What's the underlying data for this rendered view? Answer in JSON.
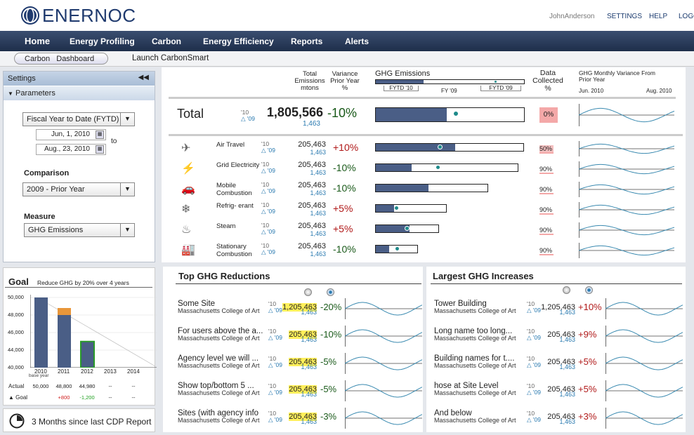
{
  "header": {
    "logo_text": "ENERNOC",
    "user": "JohnAnderson",
    "settings_link": "SETTINGS",
    "help_link": "HELP",
    "logout_link": "LOGO"
  },
  "nav": {
    "items": [
      "Home",
      "Energy Profiling",
      "Carbon",
      "Energy Efficiency",
      "Reports",
      "Alerts"
    ]
  },
  "subnav": {
    "crumb_1": "Carbon",
    "crumb_2": "Dashboard",
    "launch": "Launch CarbonSmart"
  },
  "settings": {
    "title": "Settings",
    "collapse_icon": "double-chevron-left-icon",
    "params_title": "Parameters",
    "period": "Fiscal Year to Date (FYTD)",
    "date_from": "Jun, 1, 2010",
    "date_to": "Aug., 23, 2010",
    "to_label": "to",
    "comparison_label": "Comparison",
    "comparison_value": "2009 - Prior Year",
    "measure_label": "Measure",
    "measure_value": "GHG Emissions"
  },
  "goal": {
    "title": "Goal",
    "subtitle": "Reduce GHG by 20% over 4 years",
    "y_ticks": [
      "50,000",
      "48,000",
      "46,000",
      "44,000",
      "40,000"
    ],
    "x_labels": [
      "2010",
      "2011",
      "2012",
      "2013",
      "2014"
    ],
    "base_year_label": "base year",
    "actual_label": "Actual",
    "goal_label": "Goal",
    "actual_values": [
      "50,000",
      "48,800",
      "44,980",
      "--",
      "--"
    ],
    "goal_values": [
      "",
      "+800",
      "-1,200",
      "--",
      "--"
    ],
    "colors": {
      "bar": "#4a5e86",
      "over": "#e8963a",
      "under": "#2a9a2a"
    }
  },
  "cdp": {
    "text": "3 Months since last CDP Report",
    "icon": "clock-icon"
  },
  "table": {
    "col_total": "Total Emissions mtons",
    "col_variance": "Variance Prior Year %",
    "col_ghg": "GHG Emissions",
    "fytd10": "FYTD '10",
    "fy09": "FY '09",
    "fytd09": "FYTD '09",
    "col_collected": "Data Collected %",
    "col_monthly": "GHG Monthly Variance From Prior Year",
    "month_start": "Jun. 2010",
    "month_end": "Aug. 2010",
    "total": {
      "label": "Total",
      "y10": "'10",
      "y09": "'09",
      "value": "1,805,566",
      "prior": "1,463",
      "variance": "-10%",
      "fill": 0.48,
      "dot": 0.52,
      "collected": "0%"
    },
    "rows": [
      {
        "icon": "airplane-icon",
        "name": "Air Travel",
        "y10": "'10",
        "y09": "'09",
        "value": "205,463",
        "prior": "1,463",
        "variance": "+10%",
        "fill": 0.54,
        "dot": 0.42,
        "bar_len": 1.0,
        "collected": "50%"
      },
      {
        "icon": "lightning-icon",
        "name": "Grid Electricity",
        "y10": "'10",
        "y09": "'09",
        "value": "205,463",
        "prior": "1,463",
        "variance": "-10%",
        "fill": 0.25,
        "dot": 0.42,
        "bar_len": 0.96,
        "collected": "90%"
      },
      {
        "icon": "car-icon",
        "name": "Mobile Combustion",
        "y10": "'10",
        "y09": "'09",
        "value": "205,463",
        "prior": "1,463",
        "variance": "-10%",
        "fill": 0.47,
        "dot": -1,
        "bar_len": 0.76,
        "collected": "90%"
      },
      {
        "icon": "snowflake-icon",
        "name": "Refrig- erant",
        "y10": "'10",
        "y09": "'09",
        "value": "205,463",
        "prior": "1,463",
        "variance": "+5%",
        "fill": 0.26,
        "dot": 0.26,
        "bar_len": 0.48,
        "collected": "90%"
      },
      {
        "icon": "steam-icon",
        "name": "Steam",
        "y10": "'10",
        "y09": "'09",
        "value": "205,463",
        "prior": "1,463",
        "variance": "+5%",
        "fill": 0.54,
        "dot": 0.46,
        "bar_len": 0.43,
        "collected": "90%"
      },
      {
        "icon": "factory-icon",
        "name": "Stationary Combustion",
        "y10": "'10",
        "y09": "'09",
        "value": "205,463",
        "prior": "1,463",
        "variance": "-10%",
        "fill": 0.33,
        "dot": 0.45,
        "bar_len": 0.29,
        "collected": "90%"
      }
    ]
  },
  "reductions": {
    "title": "Top GHG Reductions",
    "items": [
      {
        "name": "Some Site",
        "sub": "Massachusetts College of Art",
        "y10": "'10",
        "y09": "'09",
        "value": "1,205,463",
        "prior": "1,463",
        "variance": "-20%"
      },
      {
        "name": "For users above the a...",
        "sub": "Massachusetts College of Art",
        "y10": "'10",
        "y09": "'09",
        "value": "205,463",
        "prior": "1,463",
        "variance": "-10%"
      },
      {
        "name": "Agency level we will ...",
        "sub": "Massachusetts College of Art",
        "y10": "'10",
        "y09": "'09",
        "value": "205,463",
        "prior": "1,463",
        "variance": "-5%"
      },
      {
        "name": "Show top/bottom 5 ...",
        "sub": "Massachusetts College of Art",
        "y10": "'10",
        "y09": "'09",
        "value": "205,463",
        "prior": "1,463",
        "variance": "-5%"
      },
      {
        "name": "Sites (with agency info",
        "sub": "Massachusetts College of Art",
        "y10": "'10",
        "y09": "'09",
        "value": "205,463",
        "prior": "1,463",
        "variance": "-3%"
      }
    ]
  },
  "increases": {
    "title": "Largest GHG Increases",
    "items": [
      {
        "name": "Tower Building",
        "sub": "Massachusetts College of Art",
        "y10": "'10",
        "y09": "'09",
        "value": "1,205,463",
        "prior": "1,463",
        "variance": "+10%"
      },
      {
        "name": "Long name too long...",
        "sub": "Massachusetts College of Art",
        "y10": "'10",
        "y09": "'09",
        "value": "205,463",
        "prior": "1,463",
        "variance": "+9%"
      },
      {
        "name": "Building names for t....",
        "sub": "Massachusetts College of Art",
        "y10": "'10",
        "y09": "'09",
        "value": "205,463",
        "prior": "1,463",
        "variance": "+5%"
      },
      {
        "name": "hose at Site Level",
        "sub": "Massachusetts College of Art",
        "y10": "'10",
        "y09": "'09",
        "value": "205,463",
        "prior": "1,463",
        "variance": "+5%"
      },
      {
        "name": "And below",
        "sub": "Massachusetts College of Art",
        "y10": "'10",
        "y09": "'09",
        "value": "205,463",
        "prior": "1,463",
        "variance": "+3%"
      }
    ]
  }
}
